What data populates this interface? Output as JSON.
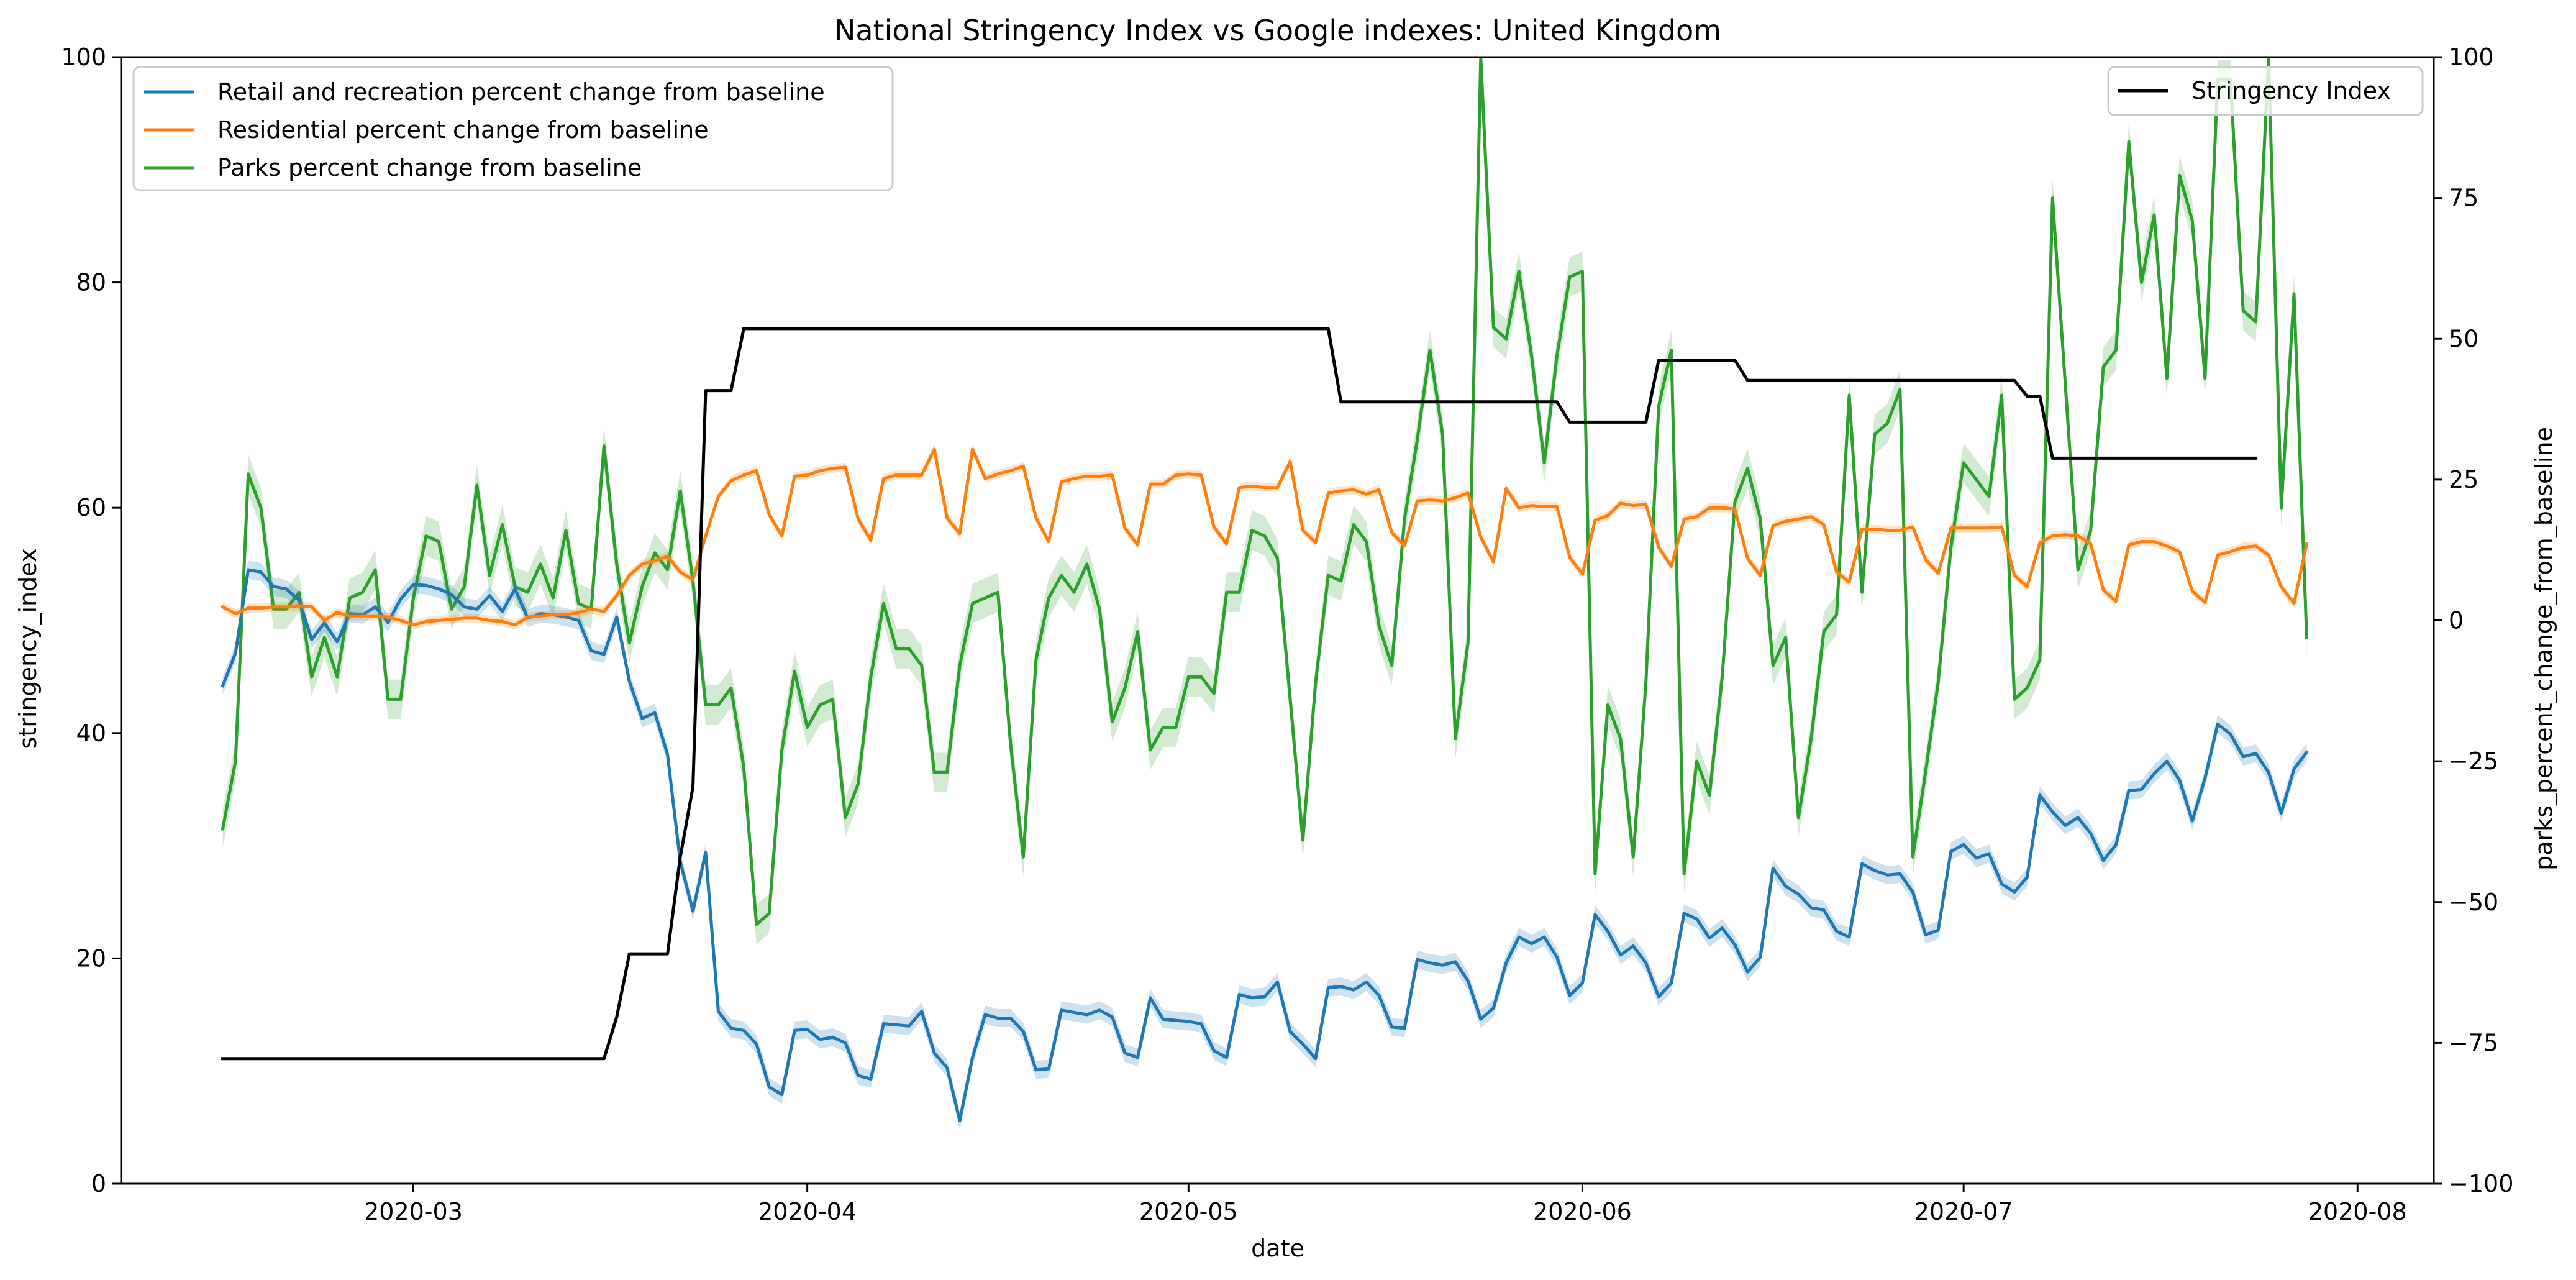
{
  "chart_data": {
    "type": "line",
    "title": "National Stringency Index vs Google indexes: United Kingdom",
    "xlabel": "date",
    "ylabel_left": "stringency_index",
    "ylabel_right": "parks_percent_change_from_baseline",
    "x_start": "2020-02-15",
    "x_end": "2020-07-27",
    "xlim": [
      "2020-02-07",
      "2020-08-07"
    ],
    "ylim_left": [
      0,
      100
    ],
    "ylim_right": [
      -100,
      100
    ],
    "x_ticks": [
      "2020-03",
      "2020-04",
      "2020-05",
      "2020-06",
      "2020-07",
      "2020-08"
    ],
    "y_ticks_left": [
      "0",
      "20",
      "40",
      "60",
      "80",
      "100"
    ],
    "y_ticks_right": [
      "−100",
      "−75",
      "−50",
      "−25",
      "0",
      "25",
      "50",
      "75",
      "100"
    ],
    "y_ticks_left_values": [
      0,
      20,
      40,
      60,
      80,
      100
    ],
    "y_ticks_right_values": [
      -100,
      -75,
      -50,
      -25,
      0,
      25,
      50,
      75,
      100
    ],
    "grid": false,
    "legend_left": {
      "placement": "top-left"
    },
    "legend_right": {
      "placement": "top-right"
    },
    "series": [
      {
        "name": "Retail and recreation percent change from baseline",
        "axis": "left",
        "color": "#1f77b4",
        "band": 0.8,
        "values": [
          44.2,
          47.1,
          54.5,
          54.3,
          53.0,
          52.8,
          51.8,
          48.3,
          49.8,
          48.1,
          50.6,
          50.5,
          51.2,
          49.8,
          51.9,
          53.2,
          53.1,
          52.8,
          52.3,
          51.2,
          51.0,
          52.2,
          50.8,
          52.8,
          50.2,
          50.6,
          50.5,
          50.3,
          50.0,
          47.3,
          47.0,
          50.3,
          44.6,
          41.3,
          41.8,
          38.1,
          28.6,
          24.2,
          29.4,
          15.3,
          13.8,
          13.6,
          12.4,
          8.6,
          7.9,
          13.6,
          13.7,
          12.8,
          13.0,
          12.5,
          9.6,
          9.3,
          14.2,
          14.1,
          14.0,
          15.3,
          11.6,
          10.3,
          5.6,
          11.2,
          15.0,
          14.7,
          14.7,
          13.5,
          10.1,
          10.2,
          15.4,
          15.2,
          15.0,
          15.4,
          14.8,
          11.6,
          11.2,
          16.5,
          14.6,
          14.5,
          14.4,
          14.2,
          11.8,
          11.2,
          16.8,
          16.5,
          16.6,
          17.9,
          13.5,
          12.4,
          11.1,
          17.4,
          17.5,
          17.2,
          17.9,
          16.7,
          13.9,
          13.8,
          19.9,
          19.6,
          19.4,
          19.7,
          18.0,
          14.6,
          15.6,
          19.6,
          21.9,
          21.3,
          21.9,
          20.1,
          16.7,
          17.8,
          23.9,
          22.4,
          20.3,
          21.1,
          19.6,
          16.6,
          17.8,
          24.0,
          23.5,
          21.8,
          22.7,
          21.2,
          18.8,
          20.1,
          28.0,
          26.4,
          25.7,
          24.5,
          24.3,
          22.4,
          21.9,
          28.4,
          27.8,
          27.4,
          27.5,
          25.9,
          22.1,
          22.5,
          29.5,
          30.1,
          28.9,
          29.3,
          26.6,
          25.9,
          27.2,
          34.5,
          33.0,
          31.8,
          32.5,
          31.1,
          28.7,
          30.1,
          34.9,
          35.0,
          36.4,
          37.5,
          35.8,
          32.2,
          36.0,
          40.8,
          39.9,
          37.9,
          38.2,
          36.5,
          32.9,
          36.8,
          38.3
        ]
      },
      {
        "name": "Residential percent change from baseline",
        "axis": "left",
        "color": "#ff7f0e",
        "band": 0.4,
        "values": [
          51.2,
          50.6,
          51.1,
          51.1,
          51.2,
          51.2,
          51.3,
          51.2,
          50.0,
          50.7,
          50.4,
          50.4,
          50.4,
          50.3,
          50.0,
          49.6,
          49.9,
          50.0,
          50.1,
          50.2,
          50.2,
          50.0,
          49.9,
          49.6,
          50.3,
          50.4,
          50.5,
          50.5,
          50.7,
          51.0,
          50.8,
          52.2,
          54.0,
          55.0,
          55.3,
          55.7,
          54.3,
          53.6,
          57.5,
          61.0,
          62.4,
          62.9,
          63.3,
          59.4,
          57.5,
          62.8,
          62.9,
          63.3,
          63.5,
          63.6,
          59.0,
          57.1,
          62.6,
          62.9,
          62.9,
          62.9,
          65.2,
          59.1,
          57.7,
          65.2,
          62.6,
          63.0,
          63.3,
          63.7,
          59.1,
          57.0,
          62.3,
          62.6,
          62.8,
          62.8,
          62.9,
          58.2,
          56.7,
          62.1,
          62.1,
          62.9,
          63.0,
          62.9,
          58.3,
          56.8,
          61.8,
          61.9,
          61.8,
          61.8,
          64.1,
          58.0,
          56.9,
          61.3,
          61.5,
          61.6,
          61.2,
          61.6,
          57.8,
          56.6,
          60.6,
          60.7,
          60.6,
          60.9,
          61.3,
          57.4,
          55.2,
          61.7,
          60.0,
          60.2,
          60.1,
          60.1,
          55.6,
          54.1,
          58.9,
          59.3,
          60.4,
          60.2,
          60.3,
          56.5,
          54.8,
          59.0,
          59.2,
          60.0,
          60.0,
          59.9,
          55.5,
          54.0,
          58.4,
          58.8,
          59.0,
          59.2,
          58.5,
          54.3,
          53.4,
          58.1,
          58.1,
          58.0,
          58.0,
          58.3,
          55.4,
          54.2,
          58.2,
          58.2,
          58.2,
          58.2,
          58.3,
          54.0,
          53.0,
          56.9,
          57.5,
          57.6,
          57.5,
          56.8,
          52.7,
          51.7,
          56.7,
          57.0,
          57.0,
          56.6,
          56.1,
          52.6,
          51.6,
          55.8,
          56.1,
          56.5,
          56.6,
          55.8,
          53.0,
          51.5,
          56.8
        ]
      },
      {
        "name": "Parks percent change from baseline",
        "axis": "right",
        "color": "#2ca02c",
        "band": 3.5,
        "values": [
          -37,
          -25,
          26,
          20,
          2,
          2,
          5,
          -10,
          -3,
          -10,
          4,
          5,
          9,
          -14,
          -14,
          4,
          15,
          14,
          2,
          6,
          24,
          8,
          17,
          6,
          5,
          10,
          4,
          16,
          3,
          2,
          31,
          10,
          -4,
          6,
          12,
          9,
          23,
          7,
          -15,
          -15,
          -12,
          -26,
          -54,
          -52,
          -23,
          -9,
          -19,
          -15,
          -14,
          -35,
          -29,
          -10,
          3,
          -5,
          -5,
          -8,
          -27,
          -27,
          -8,
          3,
          4,
          5,
          -22,
          -42,
          -7,
          4,
          8,
          5,
          10,
          2,
          -18,
          -12,
          -2,
          -23,
          -19,
          -19,
          -10,
          -10,
          -13,
          5,
          5,
          16,
          15,
          11,
          -14,
          -39,
          -11,
          8,
          7,
          17,
          14,
          -1,
          -8,
          18,
          32,
          48,
          33,
          -21,
          -4,
          100,
          52,
          50,
          62,
          47,
          28,
          47,
          61,
          62,
          -45,
          -15,
          -21,
          -42,
          -11,
          38,
          48,
          -45,
          -25,
          -31,
          -10,
          21,
          27,
          18,
          -8,
          -3,
          -35,
          -21,
          -2,
          1,
          40,
          5,
          33,
          35,
          41,
          -42,
          -27,
          -11,
          13,
          28,
          25,
          22,
          40,
          -14,
          -12,
          -7,
          75,
          42,
          9,
          16,
          45,
          48,
          85,
          60,
          72,
          43,
          79,
          71,
          43,
          96,
          96,
          55,
          53,
          100,
          20,
          58,
          -3
        ]
      },
      {
        "name": "Stringency Index",
        "axis": "left",
        "color": "#000000",
        "values": [
          11.1,
          11.1,
          11.1,
          11.1,
          11.1,
          11.1,
          11.1,
          11.1,
          11.1,
          11.1,
          11.1,
          11.1,
          11.1,
          11.1,
          11.1,
          11.1,
          11.1,
          11.1,
          11.1,
          11.1,
          11.1,
          11.1,
          11.1,
          11.1,
          11.1,
          11.1,
          11.1,
          11.1,
          11.1,
          11.1,
          11.1,
          14.8,
          20.4,
          20.4,
          20.4,
          20.4,
          29.0,
          35.2,
          70.4,
          70.4,
          70.4,
          75.9,
          75.9,
          75.9,
          75.9,
          75.9,
          75.9,
          75.9,
          75.9,
          75.9,
          75.9,
          75.9,
          75.9,
          75.9,
          75.9,
          75.9,
          75.9,
          75.9,
          75.9,
          75.9,
          75.9,
          75.9,
          75.9,
          75.9,
          75.9,
          75.9,
          75.9,
          75.9,
          75.9,
          75.9,
          75.9,
          75.9,
          75.9,
          75.9,
          75.9,
          75.9,
          75.9,
          75.9,
          75.9,
          75.9,
          75.9,
          75.9,
          75.9,
          75.9,
          75.9,
          75.9,
          75.9,
          75.9,
          69.4,
          69.4,
          69.4,
          69.4,
          69.4,
          69.4,
          69.4,
          69.4,
          69.4,
          69.4,
          69.4,
          69.4,
          69.4,
          69.4,
          69.4,
          69.4,
          69.4,
          69.4,
          67.6,
          67.6,
          67.6,
          67.6,
          67.6,
          67.6,
          67.6,
          73.1,
          73.1,
          73.1,
          73.1,
          73.1,
          73.1,
          73.1,
          71.3,
          71.3,
          71.3,
          71.3,
          71.3,
          71.3,
          71.3,
          71.3,
          71.3,
          71.3,
          71.3,
          71.3,
          71.3,
          71.3,
          71.3,
          71.3,
          71.3,
          71.3,
          71.3,
          71.3,
          71.3,
          71.3,
          69.9,
          69.9,
          64.4,
          64.4,
          64.4,
          64.4,
          64.4,
          64.4,
          64.4,
          64.4,
          64.4,
          64.4,
          64.4,
          64.4,
          64.4,
          64.4,
          64.4,
          64.4,
          64.4
        ]
      }
    ]
  }
}
